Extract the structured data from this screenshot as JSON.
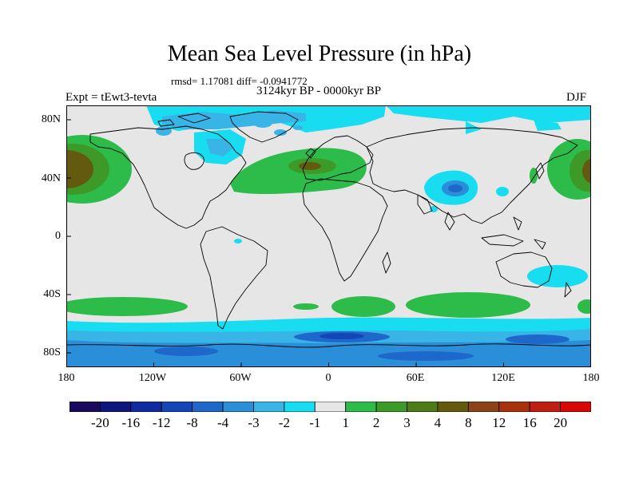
{
  "title": "Mean Sea Level Pressure (in hPa)",
  "stats": "rmsd= 1.17081 diff= -0.0941772",
  "period": "3124kyr BP - 0000kyr BP",
  "experiment": "Expt = tEwt3-tevta",
  "season": "DJF",
  "lat_labels": [
    "80N",
    "40N",
    "0",
    "40S",
    "80S"
  ],
  "lon_labels": [
    "180",
    "120W",
    "60W",
    "0",
    "60E",
    "120E",
    "180"
  ],
  "colorbar": {
    "colors": [
      "#1a0a5e",
      "#10147e",
      "#102aa0",
      "#1446b8",
      "#1e68cc",
      "#2a8ed8",
      "#38b4e6",
      "#18dcf0",
      "#e6e6e6",
      "#2dbb4a",
      "#3e9a28",
      "#4e7a18",
      "#635a10",
      "#8a4418",
      "#a8320e",
      "#c01e10",
      "#d80808"
    ],
    "labels": [
      "-20",
      "-16",
      "-12",
      "-8",
      "-4",
      "-3",
      "-2",
      "-1",
      "1",
      "2",
      "3",
      "4",
      "8",
      "12",
      "16",
      "20"
    ]
  },
  "map_colors": {
    "ocean": "#e6e6e6",
    "coast": "#000000"
  }
}
